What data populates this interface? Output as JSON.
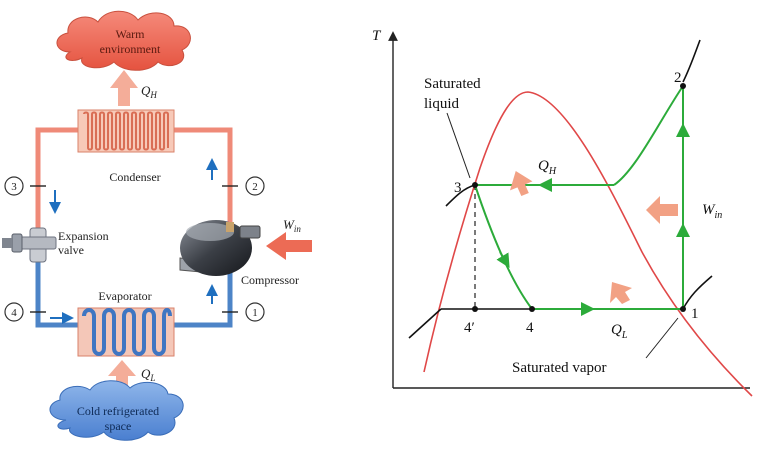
{
  "cycle_schematic": {
    "warm_environment": {
      "line1": "Warm",
      "line2": "environment"
    },
    "cold_space": {
      "line1": "Cold refrigerated",
      "line2": "space"
    },
    "heat_out": {
      "symbol": "Q",
      "subscript": "H"
    },
    "heat_in": {
      "symbol": "Q",
      "subscript": "L"
    },
    "work_in": {
      "symbol": "W",
      "subscript": "in"
    },
    "components": {
      "condenser": "Condenser",
      "evaporator": "Evaporator",
      "compressor": "Compressor",
      "expansion_valve": {
        "line1": "Expansion",
        "line2": "valve"
      }
    },
    "state_points": [
      "1",
      "2",
      "3",
      "4"
    ],
    "colors": {
      "hot_line": "#ef8a78",
      "cold_line": "#4d84c7",
      "arrow": "#1f6fbf",
      "heat_arrow": "#f3a48e"
    }
  },
  "ts_diagram": {
    "axis_y_label": "T",
    "state_labels": [
      "1",
      "2",
      "3",
      "4",
      "4′"
    ],
    "saturated_liquid": {
      "line1": "Saturated",
      "line2": "liquid"
    },
    "saturated_vapor": "Saturated vapor",
    "heat_out": {
      "symbol": "Q",
      "subscript": "H"
    },
    "heat_in": {
      "symbol": "Q",
      "subscript": "L"
    },
    "work_in": {
      "symbol": "W",
      "subscript": "in"
    },
    "colors": {
      "dome": "#e04848",
      "cycle": "#2cab3a",
      "isobar": "#111111",
      "heat_arrow": "#f2a184"
    }
  }
}
